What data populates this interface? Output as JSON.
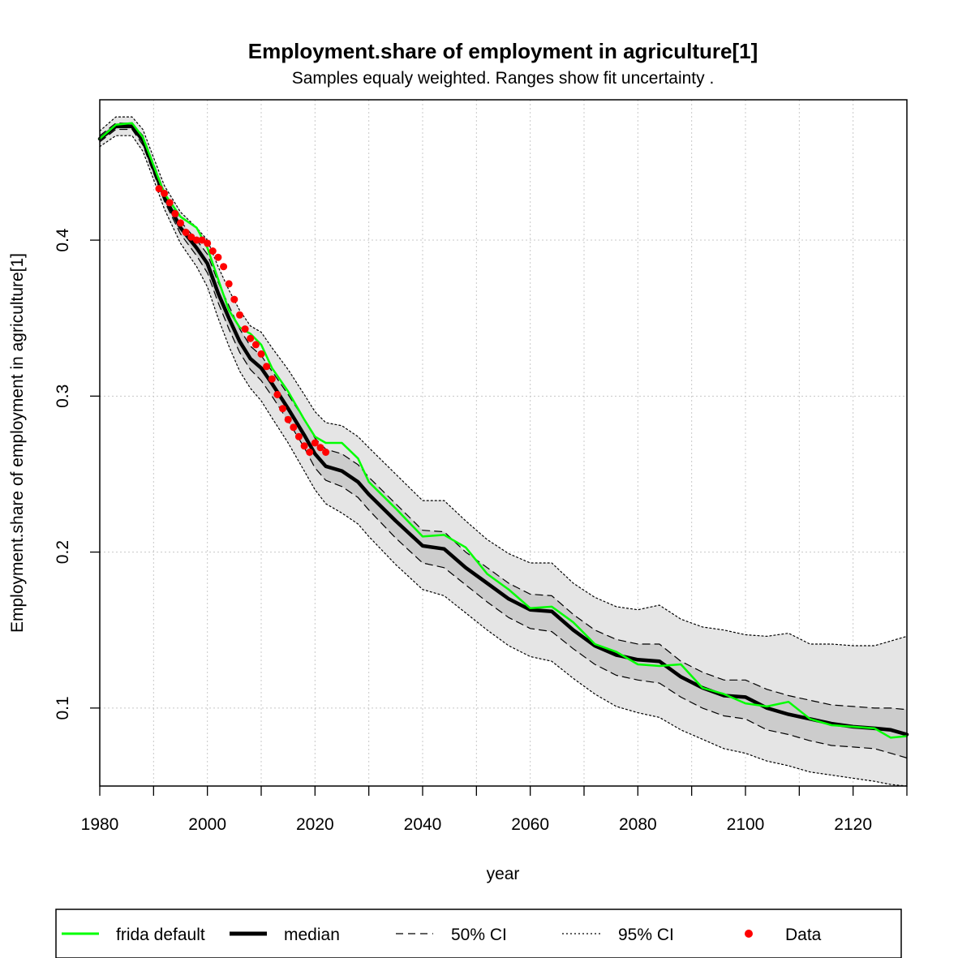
{
  "chart_data": {
    "type": "line",
    "title": "Employment.share of employment in agriculture[1]",
    "subtitle": "Samples equaly weighted. Ranges show  fit uncertainty .",
    "xlabel": "year",
    "ylabel": "Employment.share of employment in agriculture[1]",
    "xlim": [
      1980,
      2130
    ],
    "ylim": [
      0.05,
      0.49
    ],
    "x_ticks": [
      1980,
      2000,
      2020,
      2040,
      2060,
      2080,
      2100,
      2120
    ],
    "x_minor_ticks": [
      1990,
      2010,
      2030,
      2050,
      2070,
      2090,
      2110,
      2130
    ],
    "y_ticks": [
      0.1,
      0.2,
      0.3,
      0.4
    ],
    "y_tick_labels": [
      "0.1",
      "0.2",
      "0.3",
      "0.4"
    ],
    "grid": true,
    "legend_position": "bottom",
    "legend": [
      {
        "label": "frida default",
        "style": "solid-green"
      },
      {
        "label": "median",
        "style": "solid-thick-black"
      },
      {
        "label": "50% CI",
        "style": "dashed"
      },
      {
        "label": "95% CI",
        "style": "dotted"
      },
      {
        "label": "Data",
        "style": "red-points"
      }
    ],
    "colors": {
      "frida": "#00ff00",
      "median": "#000000",
      "data": "#ff0000",
      "band95": "#e5e5e5",
      "band50": "#cccccc",
      "grid": "#c8c8c8"
    },
    "x": [
      1980,
      1983,
      1986,
      1988,
      1990,
      1992,
      1995,
      1998,
      2000,
      2002,
      2004,
      2006,
      2008,
      2010,
      2012,
      2015,
      2018,
      2020,
      2022,
      2025,
      2028,
      2030,
      2035,
      2040,
      2044,
      2048,
      2052,
      2056,
      2060,
      2064,
      2068,
      2072,
      2076,
      2080,
      2084,
      2088,
      2092,
      2096,
      2100,
      2104,
      2108,
      2112,
      2116,
      2120,
      2124,
      2127,
      2130
    ],
    "series": [
      {
        "name": "median",
        "values": [
          0.465,
          0.473,
          0.473,
          0.464,
          0.446,
          0.428,
          0.408,
          0.395,
          0.385,
          0.366,
          0.35,
          0.335,
          0.324,
          0.318,
          0.308,
          0.292,
          0.275,
          0.263,
          0.255,
          0.252,
          0.245,
          0.237,
          0.22,
          0.204,
          0.202,
          0.19,
          0.18,
          0.17,
          0.163,
          0.162,
          0.15,
          0.14,
          0.134,
          0.131,
          0.13,
          0.12,
          0.113,
          0.108,
          0.107,
          0.1,
          0.096,
          0.093,
          0.09,
          0.088,
          0.087,
          0.086,
          0.083
        ]
      },
      {
        "name": "frida default",
        "values": [
          0.465,
          0.474,
          0.475,
          0.466,
          0.448,
          0.43,
          0.415,
          0.408,
          0.395,
          0.375,
          0.355,
          0.344,
          0.34,
          0.333,
          0.318,
          0.303,
          0.285,
          0.274,
          0.27,
          0.27,
          0.26,
          0.245,
          0.228,
          0.21,
          0.211,
          0.203,
          0.186,
          0.176,
          0.164,
          0.165,
          0.155,
          0.141,
          0.136,
          0.128,
          0.127,
          0.128,
          0.113,
          0.109,
          0.103,
          0.101,
          0.104,
          0.093,
          0.089,
          0.088,
          0.087,
          0.081,
          0.082
        ]
      },
      {
        "name": "50% CI upper",
        "values": [
          0.467,
          0.475,
          0.475,
          0.467,
          0.449,
          0.431,
          0.412,
          0.4,
          0.391,
          0.373,
          0.358,
          0.343,
          0.332,
          0.326,
          0.316,
          0.301,
          0.285,
          0.273,
          0.266,
          0.263,
          0.256,
          0.248,
          0.231,
          0.214,
          0.213,
          0.2,
          0.19,
          0.18,
          0.173,
          0.172,
          0.16,
          0.15,
          0.144,
          0.141,
          0.141,
          0.13,
          0.123,
          0.118,
          0.118,
          0.112,
          0.108,
          0.105,
          0.102,
          0.101,
          0.1,
          0.1,
          0.099
        ]
      },
      {
        "name": "50% CI lower",
        "values": [
          0.463,
          0.471,
          0.471,
          0.461,
          0.443,
          0.425,
          0.404,
          0.39,
          0.379,
          0.36,
          0.343,
          0.328,
          0.317,
          0.31,
          0.3,
          0.284,
          0.267,
          0.254,
          0.246,
          0.242,
          0.235,
          0.227,
          0.209,
          0.193,
          0.19,
          0.179,
          0.168,
          0.158,
          0.151,
          0.149,
          0.138,
          0.128,
          0.121,
          0.118,
          0.116,
          0.107,
          0.1,
          0.095,
          0.093,
          0.086,
          0.083,
          0.079,
          0.076,
          0.075,
          0.074,
          0.071,
          0.068
        ]
      },
      {
        "name": "95% CI upper",
        "values": [
          0.47,
          0.479,
          0.479,
          0.471,
          0.453,
          0.435,
          0.418,
          0.408,
          0.4,
          0.383,
          0.368,
          0.355,
          0.345,
          0.341,
          0.331,
          0.317,
          0.301,
          0.29,
          0.283,
          0.281,
          0.274,
          0.267,
          0.25,
          0.233,
          0.233,
          0.22,
          0.208,
          0.199,
          0.193,
          0.193,
          0.18,
          0.171,
          0.165,
          0.163,
          0.166,
          0.157,
          0.152,
          0.15,
          0.147,
          0.146,
          0.148,
          0.141,
          0.141,
          0.14,
          0.14,
          0.143,
          0.146
        ]
      },
      {
        "name": "95% CI lower",
        "values": [
          0.46,
          0.467,
          0.467,
          0.457,
          0.439,
          0.42,
          0.398,
          0.383,
          0.37,
          0.35,
          0.332,
          0.316,
          0.305,
          0.297,
          0.286,
          0.27,
          0.252,
          0.24,
          0.231,
          0.225,
          0.218,
          0.21,
          0.192,
          0.176,
          0.172,
          0.161,
          0.15,
          0.14,
          0.133,
          0.13,
          0.119,
          0.109,
          0.101,
          0.097,
          0.094,
          0.086,
          0.08,
          0.074,
          0.071,
          0.066,
          0.063,
          0.059,
          0.057,
          0.055,
          0.053,
          0.051,
          0.05
        ]
      }
    ],
    "data_points": {
      "name": "Data",
      "x": [
        1991,
        1992,
        1993,
        1994,
        1995,
        1996,
        1997,
        1998,
        1999,
        2000,
        2001,
        2002,
        2003,
        2004,
        2005,
        2006,
        2007,
        2008,
        2009,
        2010,
        2011,
        2012,
        2013,
        2014,
        2015,
        2016,
        2017,
        2018,
        2019,
        2020,
        2021,
        2022
      ],
      "y": [
        0.433,
        0.43,
        0.424,
        0.417,
        0.411,
        0.405,
        0.402,
        0.4,
        0.4,
        0.398,
        0.393,
        0.389,
        0.383,
        0.372,
        0.362,
        0.352,
        0.343,
        0.337,
        0.333,
        0.327,
        0.319,
        0.311,
        0.301,
        0.292,
        0.285,
        0.28,
        0.274,
        0.268,
        0.264,
        0.27,
        0.267,
        0.264
      ]
    }
  }
}
